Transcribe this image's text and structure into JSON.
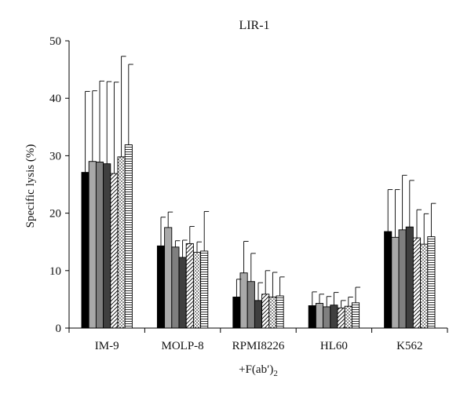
{
  "chart_data": {
    "type": "bar",
    "title": "LIR-1",
    "ylabel": "Specific lysis (%)",
    "xlabel_main": "+F(ab′)",
    "xlabel_sub": "2",
    "ylim": [
      0,
      50
    ],
    "yticks": [
      0,
      10,
      20,
      30,
      40,
      50
    ],
    "grid": false,
    "legend": "none",
    "error_bars": "upper",
    "categories": [
      "IM-9",
      "MOLP-8",
      "RPMI8226",
      "HL60",
      "K562"
    ],
    "series": [
      {
        "pattern": "solid-black",
        "values": [
          27.1,
          14.3,
          5.4,
          3.9,
          16.8
        ],
        "errors": [
          14.1,
          5.0,
          3.1,
          2.4,
          7.3
        ]
      },
      {
        "pattern": "solid-lightgray",
        "values": [
          29.0,
          17.5,
          9.6,
          4.3,
          15.8
        ],
        "errors": [
          12.3,
          2.7,
          5.5,
          1.6,
          8.3
        ]
      },
      {
        "pattern": "solid-gray",
        "values": [
          28.9,
          14.1,
          8.1,
          3.7,
          17.1
        ],
        "errors": [
          14.1,
          1.1,
          4.9,
          1.8,
          9.5
        ]
      },
      {
        "pattern": "solid-darkgray",
        "values": [
          28.6,
          12.3,
          4.8,
          4.0,
          17.6
        ],
        "errors": [
          14.3,
          3.0,
          3.1,
          2.2,
          8.1
        ]
      },
      {
        "pattern": "diagonal-hatch",
        "values": [
          26.9,
          14.7,
          5.9,
          3.5,
          15.7
        ],
        "errors": [
          15.9,
          3.0,
          4.1,
          1.3,
          4.9
        ]
      },
      {
        "pattern": "dotted",
        "values": [
          29.8,
          13.2,
          5.4,
          3.8,
          14.6
        ],
        "errors": [
          17.5,
          1.8,
          4.3,
          1.6,
          5.3
        ]
      },
      {
        "pattern": "horizontal-lines",
        "values": [
          31.9,
          13.4,
          5.6,
          4.4,
          15.9
        ],
        "errors": [
          14.0,
          6.9,
          3.3,
          2.7,
          5.8
        ]
      }
    ]
  }
}
